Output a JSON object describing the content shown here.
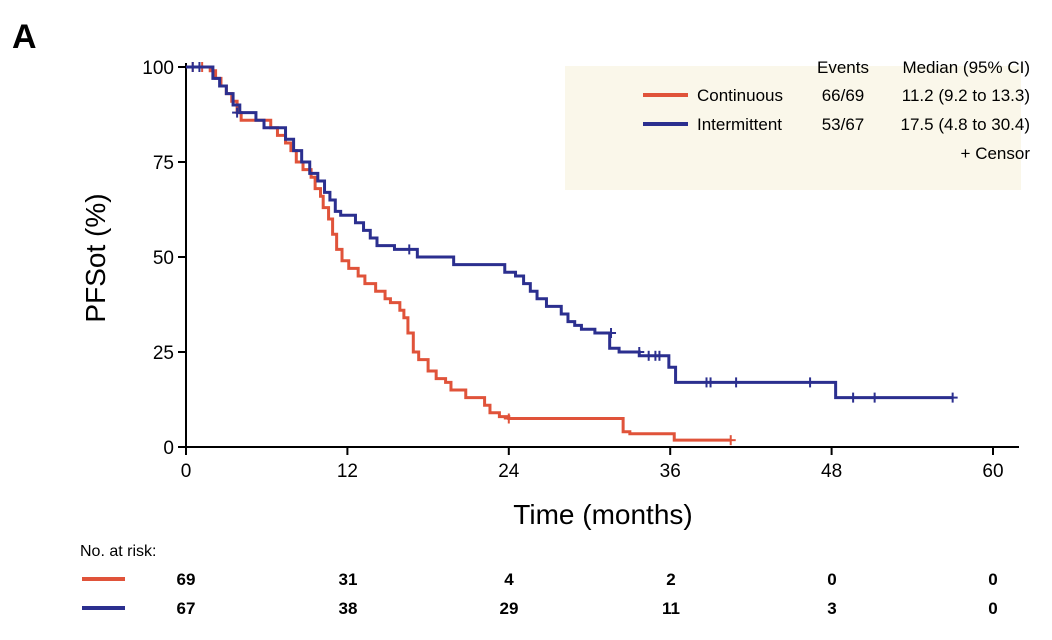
{
  "panel_label": "A",
  "chart_data": {
    "type": "line",
    "step": true,
    "title": "",
    "xlabel": "Time (months)",
    "ylabel": "PFSot (%)",
    "xlim": [
      0,
      62
    ],
    "ylim": [
      0,
      100
    ],
    "xticks": [
      0,
      12,
      24,
      36,
      48,
      60
    ],
    "yticks": [
      0,
      25,
      50,
      75,
      100
    ],
    "grid": false,
    "legend_position": "top-right",
    "legend_header": {
      "events": "Events",
      "median": "Median (95% CI)"
    },
    "censor_note": "+ Censor",
    "series": [
      {
        "name": "Continuous",
        "events": "66/69",
        "median": "11.2 (9.2 to 13.3)",
        "color": "#e0533a",
        "x": [
          0,
          1.8,
          2.2,
          2.6,
          3,
          3.4,
          3.8,
          4.1,
          6.3,
          6.8,
          7.4,
          7.8,
          8.2,
          8.7,
          9.3,
          9.6,
          10,
          10.2,
          10.6,
          10.9,
          11.2,
          11.6,
          12.1,
          12.8,
          13.3,
          14.1,
          14.8,
          15.2,
          15.9,
          16.2,
          16.5,
          16.9,
          17.3,
          18,
          18.6,
          19.3,
          19.7,
          20.8,
          22.2,
          22.6,
          23.3,
          24,
          32.5,
          33,
          36.3,
          40.5
        ],
        "y": [
          100,
          99,
          97,
          95,
          93,
          91,
          88,
          86,
          84,
          82,
          80,
          78,
          75,
          73,
          71,
          68,
          66,
          63,
          60,
          56,
          52,
          49,
          47,
          45,
          43,
          41,
          39,
          38,
          36,
          34,
          30,
          25,
          23,
          20,
          18,
          17,
          15,
          13,
          11,
          9,
          8,
          7.5,
          4,
          3.5,
          1.8,
          1.8
        ],
        "censor_x": [
          0.5,
          1.2,
          24,
          40.5
        ],
        "censor_y": [
          100,
          100,
          7.5,
          1.8
        ]
      },
      {
        "name": "Intermittent",
        "events": "53/67",
        "median": "17.5 (4.8 to 30.4)",
        "color": "#2b2f8f",
        "x": [
          0,
          2,
          2.5,
          3,
          3.5,
          4,
          5.2,
          5.8,
          7.4,
          8,
          8.6,
          9.2,
          9.8,
          10.3,
          10.7,
          11.1,
          11.5,
          12.6,
          13.2,
          13.7,
          14.2,
          15.5,
          17.2,
          19.9,
          23.7,
          24.5,
          25.1,
          25.6,
          26.1,
          26.8,
          27.9,
          28.4,
          28.9,
          29.4,
          30.4,
          31.5,
          32.2,
          33.7,
          35.9,
          36.4,
          47.8,
          48.3,
          57
        ],
        "y": [
          100,
          97,
          95,
          93,
          90,
          88,
          86,
          84,
          81,
          78,
          75,
          72,
          70,
          67,
          65,
          62,
          61,
          59,
          57,
          55,
          53,
          52,
          50,
          48,
          46,
          45,
          43,
          41,
          39,
          37,
          35,
          33,
          32,
          31,
          30,
          26,
          25,
          24,
          21,
          17,
          17,
          13,
          13
        ],
        "censor_x": [
          0.5,
          1,
          3.8,
          16.6,
          31.6,
          33.7,
          34.4,
          34.9,
          35.2,
          38.7,
          39,
          40.9,
          46.4,
          49.6,
          51.2,
          57
        ],
        "censor_y": [
          100,
          100,
          88,
          52,
          30,
          25,
          24,
          24,
          24,
          17,
          17,
          17,
          17,
          13,
          13,
          13
        ]
      }
    ],
    "at_risk": {
      "label": "No. at risk:",
      "rows": [
        {
          "series": "Continuous",
          "color": "#e0533a",
          "values": [
            "69",
            "31",
            "4",
            "2",
            "0",
            "0"
          ]
        },
        {
          "series": "Intermittent",
          "color": "#2b2f8f",
          "values": [
            "67",
            "38",
            "29",
            "11",
            "3",
            "0"
          ]
        }
      ]
    }
  },
  "colors": {
    "legend_bg": "#faf7ea",
    "axis": "#000000"
  }
}
